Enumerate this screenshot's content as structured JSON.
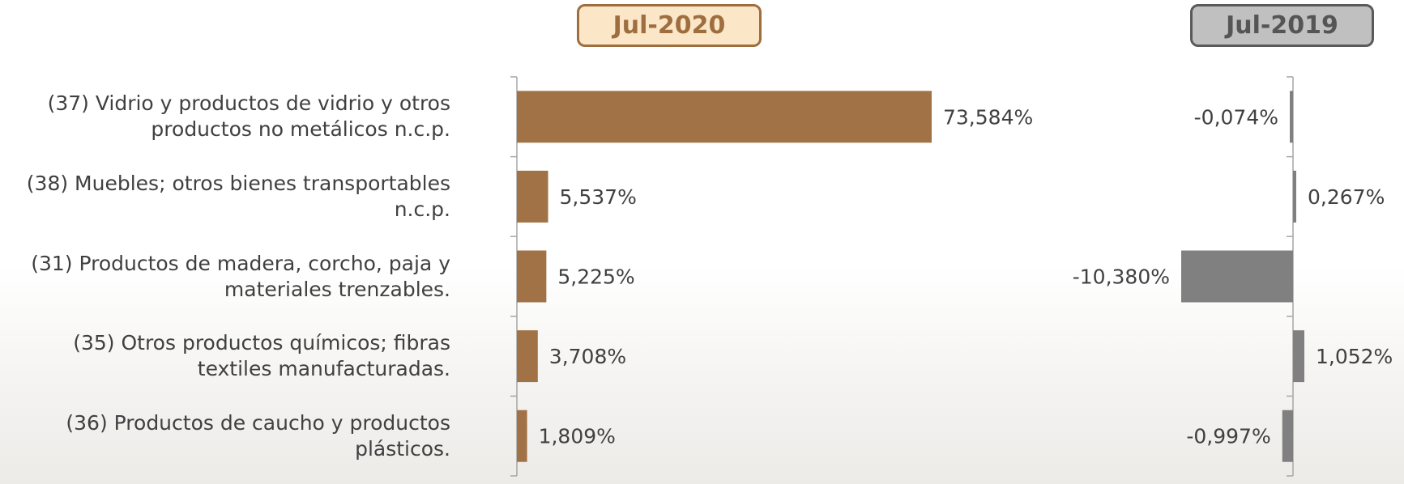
{
  "badges": {
    "left": "Jul-2020",
    "right": "Jul-2019"
  },
  "categories": [
    [
      "(37) Vidrio y productos de vidrio y otros",
      "productos no metálicos n.c.p."
    ],
    [
      "(38) Muebles; otros bienes transportables",
      "n.c.p."
    ],
    [
      "(31) Productos de madera, corcho, paja y",
      "materiales trenzables."
    ],
    [
      "(35) Otros productos químicos; fibras",
      "textiles manufacturadas."
    ],
    [
      "(36) Productos de caucho y productos",
      "plásticos."
    ]
  ],
  "colors": {
    "jul2020": "#a07245",
    "jul2019": "#808080",
    "axis": "#a6a6a6",
    "text": "#404040"
  },
  "chart_data": [
    {
      "type": "bar",
      "orientation": "horizontal",
      "title": "Jul-2020",
      "values": [
        73.584,
        5.537,
        5.225,
        3.708,
        1.809
      ],
      "value_labels": [
        "73,584%",
        "5,537%",
        "5,225%",
        "3,708%",
        "1,809%"
      ]
    },
    {
      "type": "bar",
      "orientation": "horizontal",
      "title": "Jul-2019",
      "values": [
        -0.074,
        0.267,
        -10.38,
        1.052,
        -0.997
      ],
      "value_labels": [
        "-0,074%",
        "0,267%",
        "-10,380%",
        "1,052%",
        "-0,997%"
      ]
    }
  ]
}
